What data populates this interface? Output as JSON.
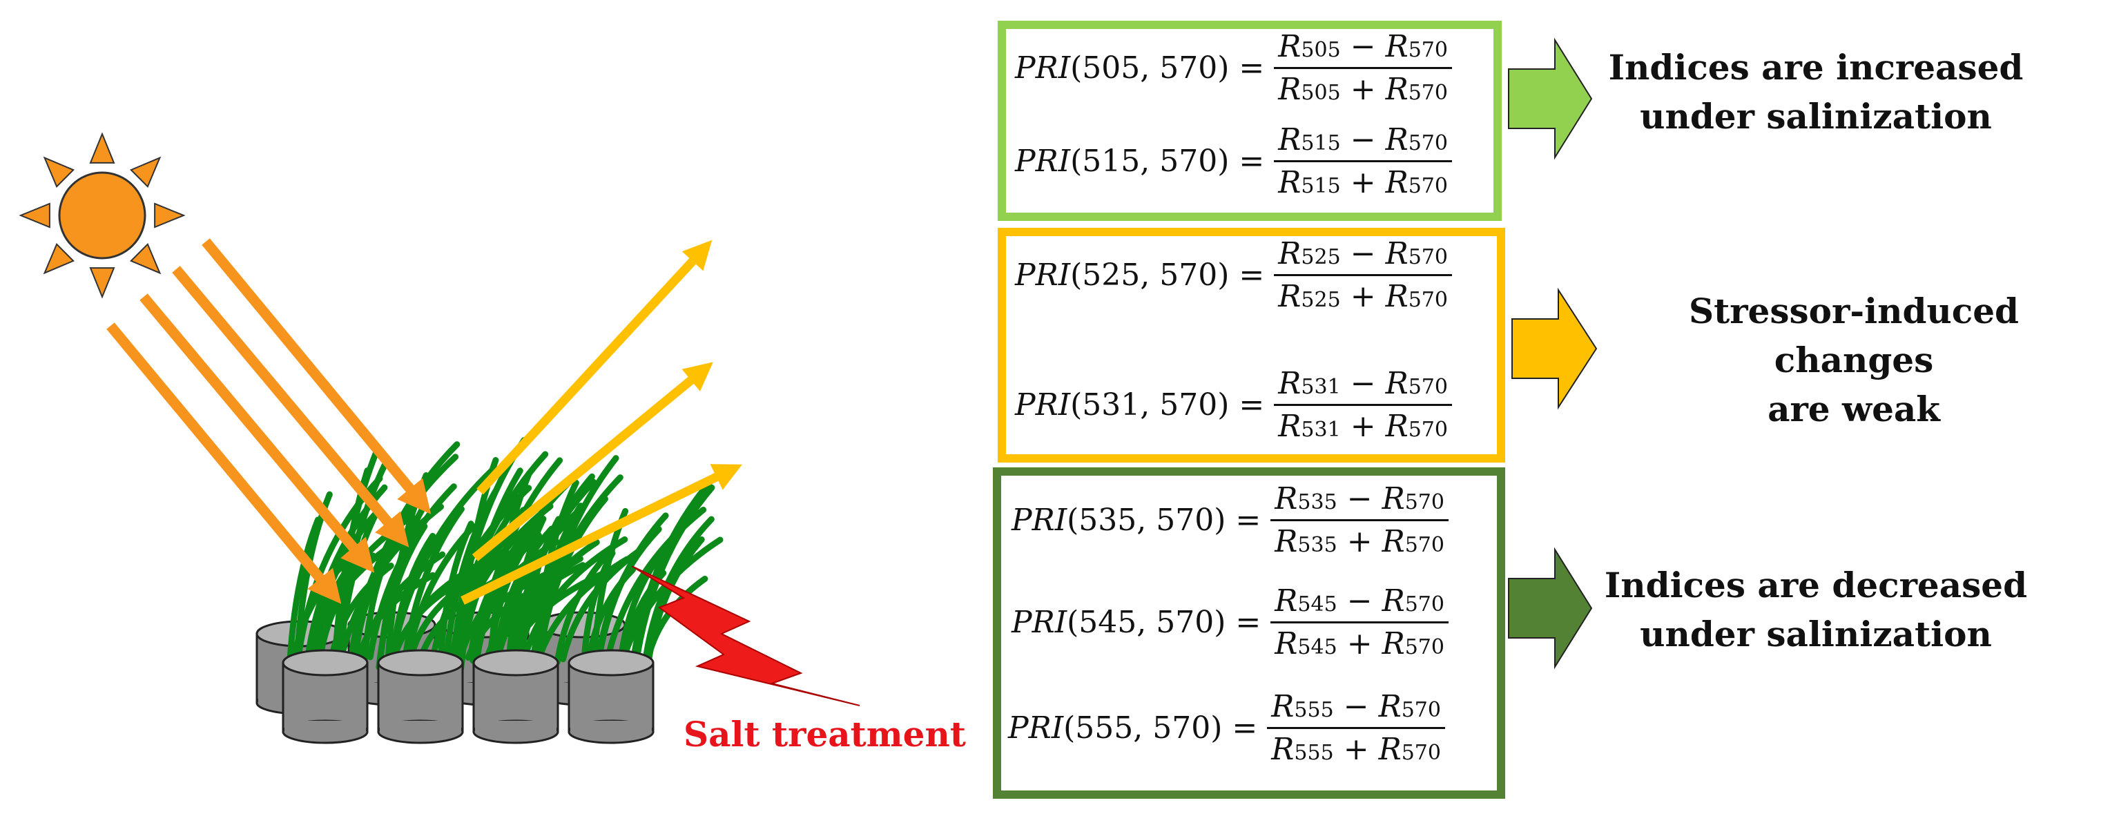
{
  "colors": {
    "increase": "#92d050",
    "weak": "#ffc000",
    "decrease": "#548235",
    "sun": "#f7941d",
    "incident_rays": "#f7941d",
    "reflected_rays": "#ffc000",
    "grass": "#0b8a1a",
    "pots": "#8c8c8c",
    "lightning": "#ee1b1b",
    "salt_text": "#e8141b"
  },
  "icons": [
    "sun-icon",
    "lightning-bolt-icon",
    "grass-pots-icon",
    "arrow-right-icon"
  ],
  "salt_label": "Salt treatment",
  "groups": [
    {
      "label_lines": [
        "Indices are increased",
        "under salinization"
      ],
      "equations": [
        {
          "name": "PRI",
          "args": "(505, 570)",
          "num_a": "R",
          "num_a_sub": "505",
          "op_top": "−",
          "num_b": "R",
          "num_b_sub": "570",
          "den_a": "R",
          "den_a_sub": "505",
          "op_bot": "+",
          "den_b": "R",
          "den_b_sub": "570"
        },
        {
          "name": "PRI",
          "args": "(515, 570)",
          "num_a": "R",
          "num_a_sub": "515",
          "op_top": "−",
          "num_b": "R",
          "num_b_sub": "570",
          "den_a": "R",
          "den_a_sub": "515",
          "op_bot": "+",
          "den_b": "R",
          "den_b_sub": "570"
        }
      ]
    },
    {
      "label_lines": [
        "Stressor-induced changes",
        "are weak"
      ],
      "equations": [
        {
          "name": "PRI",
          "args": "(525, 570)",
          "num_a": "R",
          "num_a_sub": "525",
          "op_top": "−",
          "num_b": "R",
          "num_b_sub": "570",
          "den_a": "R",
          "den_a_sub": "525",
          "op_bot": "+",
          "den_b": "R",
          "den_b_sub": "570"
        },
        {
          "name": "PRI",
          "args": "(531, 570)",
          "num_a": "R",
          "num_a_sub": "531",
          "op_top": "−",
          "num_b": "R",
          "num_b_sub": "570",
          "den_a": "R",
          "den_a_sub": "531",
          "op_bot": "+",
          "den_b": "R",
          "den_b_sub": "570"
        }
      ]
    },
    {
      "label_lines": [
        "Indices are decreased",
        "under salinization"
      ],
      "equations": [
        {
          "name": "PRI",
          "args": "(535, 570)",
          "num_a": "R",
          "num_a_sub": "535",
          "op_top": "−",
          "num_b": "R",
          "num_b_sub": "570",
          "den_a": "R",
          "den_a_sub": "535",
          "op_bot": "+",
          "den_b": "R",
          "den_b_sub": "570"
        },
        {
          "name": "PRI",
          "args": "(545, 570)",
          "num_a": "R",
          "num_a_sub": "545",
          "op_top": "−",
          "num_b": "R",
          "num_b_sub": "570",
          "den_a": "R",
          "den_a_sub": "545",
          "op_bot": "+",
          "den_b": "R",
          "den_b_sub": "570"
        },
        {
          "name": "PRI",
          "args": "(555, 570)",
          "num_a": "R",
          "num_a_sub": "555",
          "op_top": "−",
          "num_b": "R",
          "num_b_sub": "570",
          "den_a": "R",
          "den_a_sub": "555",
          "op_bot": "+",
          "den_b": "R",
          "den_b_sub": "570"
        }
      ]
    }
  ]
}
